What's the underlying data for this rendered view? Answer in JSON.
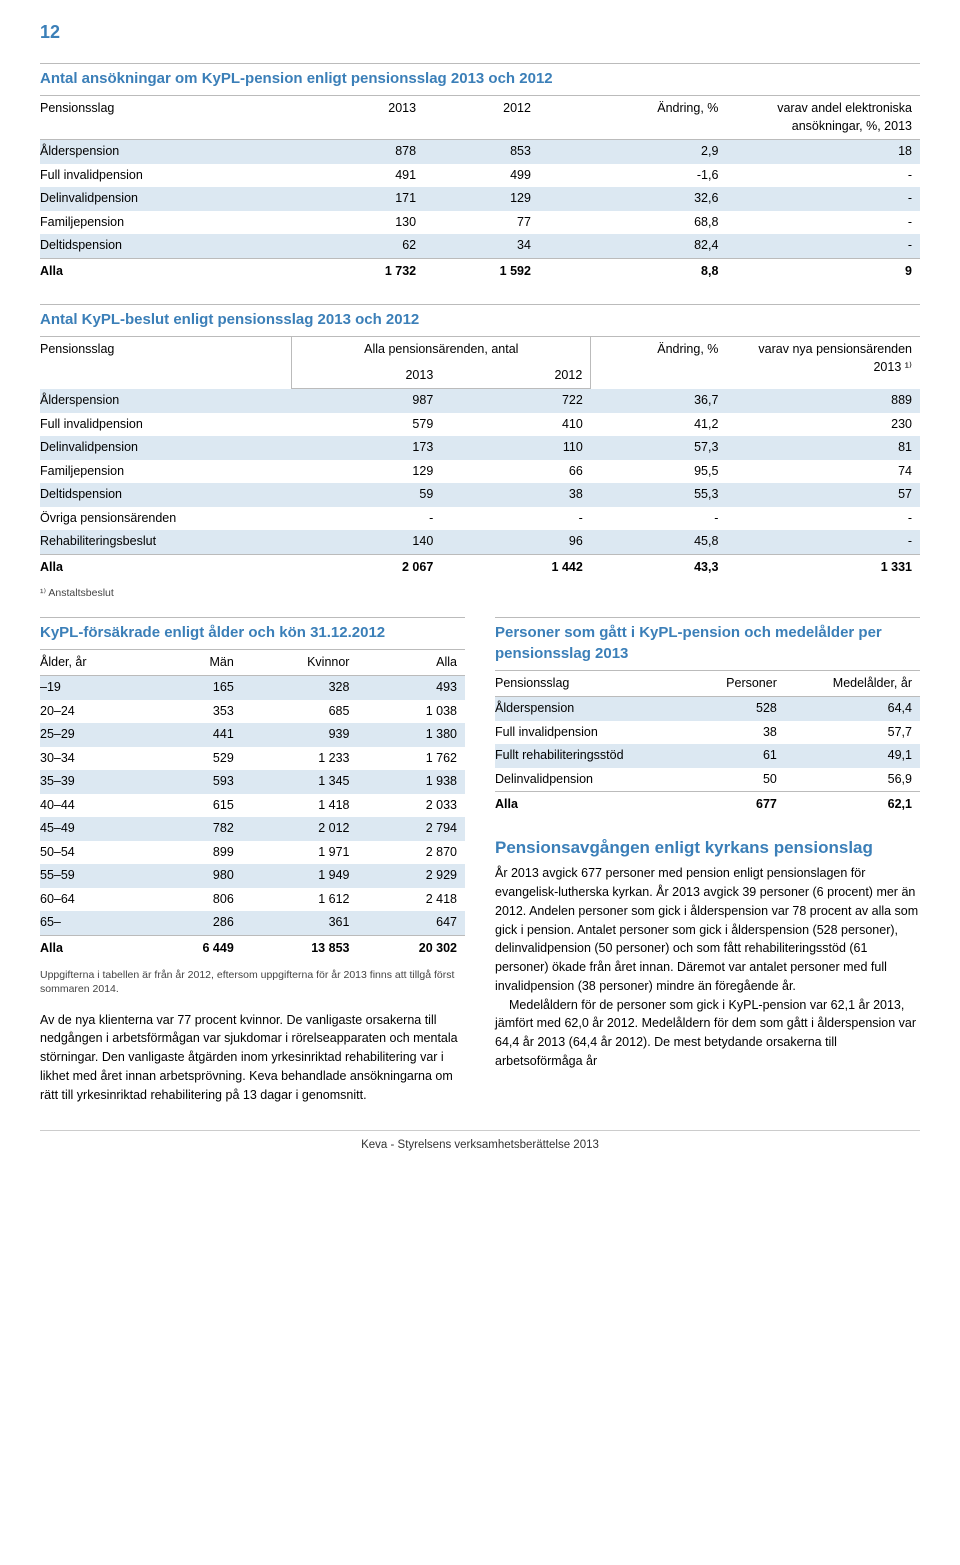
{
  "page_number": "12",
  "table1": {
    "title": "Antal ansökningar om KyPL-pension enligt pensionsslag 2013 och 2012",
    "headers": [
      "Pensionsslag",
      "2013",
      "2012",
      "Ändring, %",
      "varav andel elektroniska ansökningar, %, 2013"
    ],
    "rows": [
      [
        "Ålderspension",
        "878",
        "853",
        "2,9",
        "18"
      ],
      [
        "Full invalidpension",
        "491",
        "499",
        "-1,6",
        "-"
      ],
      [
        "Delinvalidpension",
        "171",
        "129",
        "32,6",
        "-"
      ],
      [
        "Familjepension",
        "130",
        "77",
        "68,8",
        "-"
      ],
      [
        "Deltidspension",
        "62",
        "34",
        "82,4",
        "-"
      ]
    ],
    "total": [
      "Alla",
      "1 732",
      "1 592",
      "8,8",
      "9"
    ]
  },
  "table2": {
    "title": "Antal KyPL-beslut enligt pensionsslag 2013 och 2012",
    "group_headers": [
      "Pensionsslag",
      "Alla pensionsärenden, antal",
      "Ändring, %",
      "varav nya pensionsärenden 2013 ¹⁾"
    ],
    "year_headers": [
      "2013",
      "2012"
    ],
    "rows": [
      [
        "Ålderspension",
        "987",
        "722",
        "36,7",
        "889"
      ],
      [
        "Full invalidpension",
        "579",
        "410",
        "41,2",
        "230"
      ],
      [
        "Delinvalidpension",
        "173",
        "110",
        "57,3",
        "81"
      ],
      [
        "Familjepension",
        "129",
        "66",
        "95,5",
        "74"
      ],
      [
        "Deltidspension",
        "59",
        "38",
        "55,3",
        "57"
      ],
      [
        "Övriga pensionsärenden",
        "-",
        "-",
        "-",
        "-"
      ],
      [
        "Rehabiliteringsbeslut",
        "140",
        "96",
        "45,8",
        "-"
      ]
    ],
    "total": [
      "Alla",
      "2 067",
      "1 442",
      "43,3",
      "1 331"
    ],
    "footnote": "¹⁾ Anstaltsbeslut"
  },
  "table3": {
    "title": "KyPL-försäkrade enligt ålder och kön 31.12.2012",
    "headers": [
      "Ålder, år",
      "Män",
      "Kvinnor",
      "Alla"
    ],
    "rows": [
      [
        "–19",
        "165",
        "328",
        "493"
      ],
      [
        "20–24",
        "353",
        "685",
        "1 038"
      ],
      [
        "25–29",
        "441",
        "939",
        "1 380"
      ],
      [
        "30–34",
        "529",
        "1 233",
        "1 762"
      ],
      [
        "35–39",
        "593",
        "1 345",
        "1 938"
      ],
      [
        "40–44",
        "615",
        "1 418",
        "2 033"
      ],
      [
        "45–49",
        "782",
        "2 012",
        "2 794"
      ],
      [
        "50–54",
        "899",
        "1 971",
        "2 870"
      ],
      [
        "55–59",
        "980",
        "1 949",
        "2 929"
      ],
      [
        "60–64",
        "806",
        "1 612",
        "2 418"
      ],
      [
        "65–",
        "286",
        "361",
        "647"
      ]
    ],
    "total": [
      "Alla",
      "6 449",
      "13 853",
      "20 302"
    ],
    "note": "Uppgifterna i tabellen är från år 2012, eftersom uppgifterna för år 2013 finns att tillgå först sommaren 2014."
  },
  "paragraph_left": "Av de nya klienterna var 77 procent kvinnor. De vanligaste orsakerna till nedgången i arbetsförmågan var sjukdomar i rörelseapparaten och mentala störningar. Den vanligaste åtgärden inom yrkesinriktad rehabilitering var i likhet med året innan arbetsprövning. Keva behandlade ansökningarna om rätt till yrkesinriktad rehabilitering på 13 dagar i genomsnitt.",
  "table4": {
    "title": "Personer som gått i KyPL-pension och medelålder per pensionsslag 2013",
    "headers": [
      "Pensionsslag",
      "Personer",
      "Medelålder, år"
    ],
    "rows": [
      [
        "Ålderspension",
        "528",
        "64,4"
      ],
      [
        "Full invalidpension",
        "38",
        "57,7"
      ],
      [
        "Fullt rehabiliteringsstöd",
        "61",
        "49,1"
      ],
      [
        "Delinvalidpension",
        "50",
        "56,9"
      ]
    ],
    "total": [
      "Alla",
      "677",
      "62,1"
    ]
  },
  "right_heading": "Pensionsavgången enligt kyrkans pensionslag",
  "right_para1": "År 2013 avgick 677 personer med pension enligt pensionslagen för evangelisk-lutherska kyrkan. År 2013 avgick 39 personer (6 procent) mer än 2012. Andelen personer som gick i ålderspension var 78 procent av alla som gick i pension. Antalet personer som gick i ålderspension (528 personer), delinvalidpension (50 personer) och som fått rehabiliteringsstöd (61 personer) ökade från året innan. Däremot var antalet personer med full invalidpension (38 personer) mindre än föregående år.",
  "right_para2": "Medelåldern för de personer som gick i KyPL-pension var 62,1 år 2013, jämfört med 62,0 år 2012. Medelåldern för dem som gått i ålderspension var 64,4 år 2013 (64,4 år 2012). De mest betydande orsakerna till arbetsoförmåga år",
  "footer": "Keva - Styrelsens verksamhetsberättelse 2013",
  "colors": {
    "heading": "#3b7fb8",
    "row_highlight": "#dce8f2",
    "border": "#bbbbbb"
  }
}
